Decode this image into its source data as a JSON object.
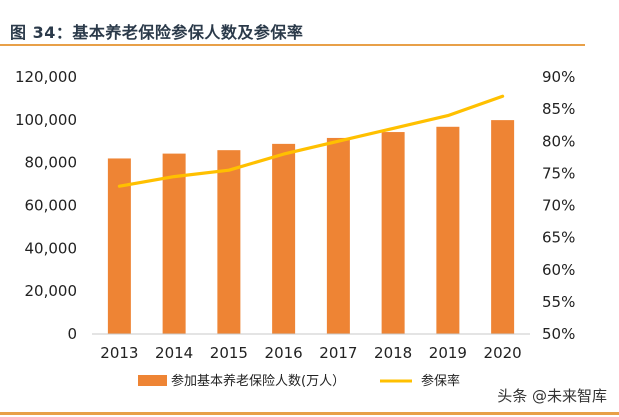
{
  "figure_title": "图 34：基本养老保险参保人数及参保率",
  "watermark": "头条 @未来智库",
  "colors": {
    "bar": "#ee8434",
    "line": "#ffc000",
    "title": "#2b3a4a",
    "rule": "#e8a048"
  },
  "chart_data": {
    "type": "bar",
    "categories": [
      "2013",
      "2014",
      "2015",
      "2016",
      "2017",
      "2018",
      "2019",
      "2020"
    ],
    "series": [
      {
        "name": "参加基本养老保险人数(万人）",
        "type": "bar",
        "axis": "left",
        "values": [
          81968,
          84232,
          85833,
          88777,
          91548,
          94293,
          96754,
          99865
        ]
      },
      {
        "name": "参保率",
        "type": "line",
        "axis": "right",
        "values": [
          0.73,
          0.745,
          0.755,
          0.78,
          0.8,
          0.82,
          0.84,
          0.87
        ]
      }
    ],
    "y_left": {
      "min": 0,
      "max": 120000,
      "ticks": [
        "0",
        "20,000",
        "40,000",
        "60,000",
        "80,000",
        "100,000",
        "120,000"
      ]
    },
    "y_right": {
      "min": 0.5,
      "max": 0.9,
      "ticks": [
        "50%",
        "55%",
        "60%",
        "65%",
        "70%",
        "75%",
        "80%",
        "85%",
        "90%"
      ]
    },
    "grid": false,
    "legend_position": "bottom"
  }
}
